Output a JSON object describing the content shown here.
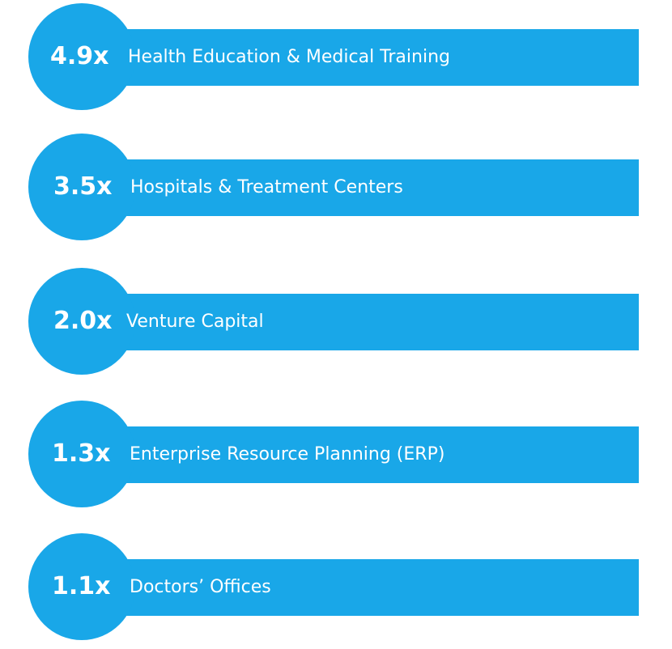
{
  "colors": {
    "accent": "#19a7e8",
    "text": "#ffffff",
    "background": "#ffffff"
  },
  "items": [
    {
      "multiplier": "4.9x",
      "label": "Health Education & Medical Training"
    },
    {
      "multiplier": "3.5x",
      "label": "Hospitals & Treatment Centers"
    },
    {
      "multiplier": "2.0x",
      "label": "Venture Capital"
    },
    {
      "multiplier": "1.3x",
      "label": "Enterprise Resource Planning (ERP)"
    },
    {
      "multiplier": "1.1x",
      "label": "Doctors’ Offices"
    }
  ]
}
